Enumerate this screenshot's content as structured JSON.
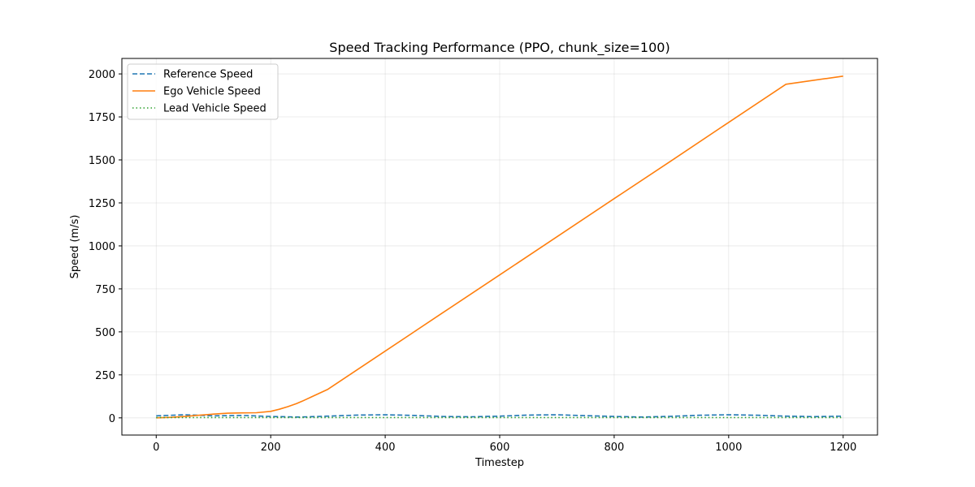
{
  "chart_data": {
    "type": "line",
    "title": "Speed Tracking Performance (PPO, chunk_size=100)",
    "xlabel": "Timestep",
    "ylabel": "Speed (m/s)",
    "xlim": [
      -60,
      1260
    ],
    "ylim": [
      -100,
      2090
    ],
    "xticks": [
      0,
      200,
      400,
      600,
      800,
      1000,
      1200
    ],
    "yticks": [
      0,
      250,
      500,
      750,
      1000,
      1250,
      1500,
      1750,
      2000
    ],
    "grid": true,
    "legend_position": "top-left",
    "series": [
      {
        "name": "Reference Speed",
        "color": "#1f77b4",
        "style": "dashed",
        "x": [
          0,
          50,
          100,
          150,
          200,
          250,
          300,
          350,
          400,
          450,
          500,
          550,
          600,
          650,
          700,
          750,
          800,
          850,
          900,
          950,
          1000,
          1050,
          1100,
          1150,
          1200
        ],
        "y": [
          12,
          18,
          12,
          14,
          8,
          5,
          10,
          16,
          18,
          14,
          8,
          6,
          10,
          16,
          18,
          13,
          8,
          5,
          9,
          15,
          18,
          15,
          10,
          7,
          10
        ]
      },
      {
        "name": "Ego Vehicle Speed",
        "color": "#ff7f0e",
        "style": "solid",
        "x": [
          0,
          25,
          50,
          75,
          100,
          125,
          150,
          175,
          200,
          215,
          230,
          245,
          255,
          270,
          300,
          400,
          500,
          600,
          700,
          800,
          900,
          1000,
          1100,
          1200
        ],
        "y": [
          0,
          3,
          8,
          15,
          22,
          27,
          29,
          30,
          38,
          50,
          65,
          83,
          97,
          120,
          166,
          388,
          610,
          831,
          1053,
          1275,
          1496,
          1718,
          1940,
          1987
        ]
      },
      {
        "name": "Lead Vehicle Speed",
        "color": "#2ca02c",
        "style": "dotted",
        "x": [
          0,
          100,
          200,
          300,
          400,
          500,
          600,
          700,
          800,
          900,
          1000,
          1100,
          1200
        ],
        "y": [
          2,
          2,
          2,
          2,
          2,
          2,
          2,
          2,
          2,
          2,
          2,
          2,
          2
        ]
      }
    ]
  }
}
